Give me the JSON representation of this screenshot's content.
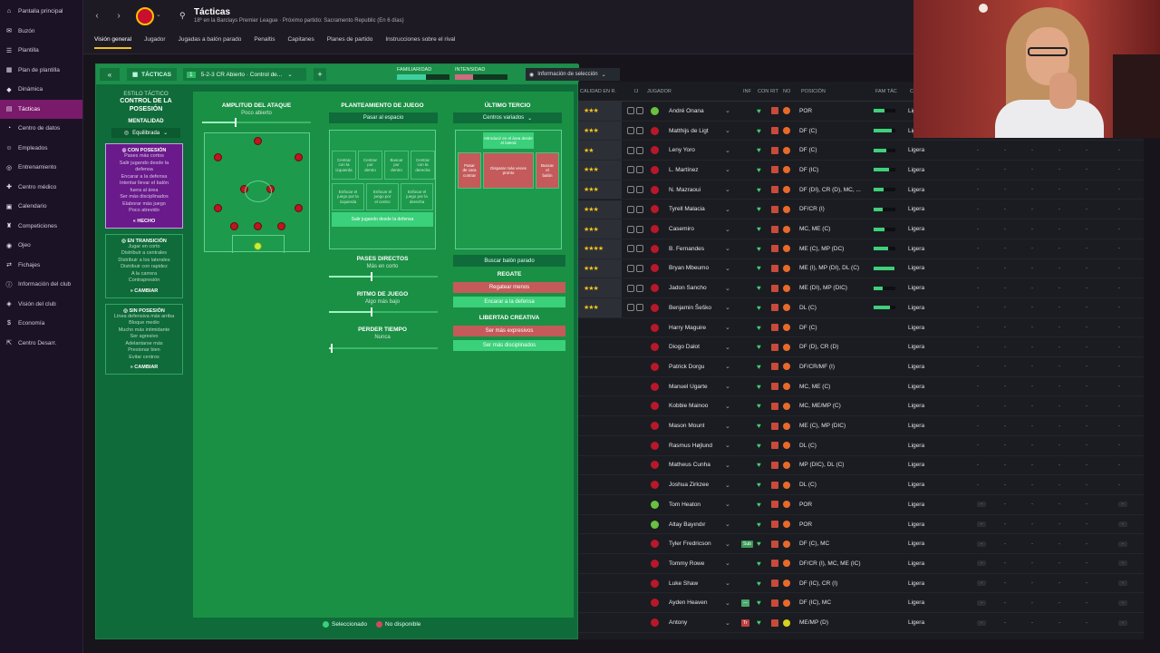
{
  "sidebar": {
    "items": [
      {
        "label": "Pantalla principal",
        "icon": "home-icon",
        "glyph": "⌂"
      },
      {
        "label": "Buzón",
        "icon": "mail-icon",
        "glyph": "✉"
      },
      {
        "label": "Plantilla",
        "icon": "squad-icon",
        "glyph": "☰"
      },
      {
        "label": "Plan de plantilla",
        "icon": "plan-icon",
        "glyph": "▦"
      },
      {
        "label": "Dinámica",
        "icon": "dynamics-icon",
        "glyph": "◆"
      },
      {
        "label": "Tácticas",
        "icon": "tactics-icon",
        "glyph": "▤",
        "active": true
      },
      {
        "label": "Centro de datos",
        "icon": "data-icon",
        "glyph": "◔"
      },
      {
        "label": "Empleados",
        "icon": "staff-icon",
        "glyph": "☺"
      },
      {
        "label": "Entrenamiento",
        "icon": "training-icon",
        "glyph": "◎"
      },
      {
        "label": "Centro médico",
        "icon": "medical-icon",
        "glyph": "✚"
      },
      {
        "label": "Calendario",
        "icon": "calendar-icon",
        "glyph": "▣"
      },
      {
        "label": "Competiciones",
        "icon": "competitions-icon",
        "glyph": "♜"
      },
      {
        "label": "Ojeo",
        "icon": "scouting-icon",
        "glyph": "◉"
      },
      {
        "label": "Fichajes",
        "icon": "transfers-icon",
        "glyph": "⇄"
      },
      {
        "label": "Información del club",
        "icon": "club-info-icon",
        "glyph": "ⓘ"
      },
      {
        "label": "Visión del club",
        "icon": "club-vision-icon",
        "glyph": "◈"
      },
      {
        "label": "Economía",
        "icon": "finances-icon",
        "glyph": "$"
      },
      {
        "label": "Centro Desarr.",
        "icon": "dev-centre-icon",
        "glyph": "⇱"
      }
    ]
  },
  "header": {
    "title": "Tácticas",
    "subtitle": "18º en la Barclays Premier League · Próximo partido: Sacramento Republic (En 6 días)",
    "tabs": [
      {
        "label": "Visión general",
        "active": true
      },
      {
        "label": "Jugador"
      },
      {
        "label": "Jugadas a balón parado"
      },
      {
        "label": "Penaltis"
      },
      {
        "label": "Capitanes"
      },
      {
        "label": "Planes de partido"
      },
      {
        "label": "Instrucciones sobre el rival"
      }
    ]
  },
  "tactic_bar": {
    "label": "TÁCTICAS",
    "slot": "1",
    "selected": "5-2-3 CR Abierto · Control de...",
    "familiarity_label": "FAMILIARIDAD",
    "intensity_label": "INTENSIDAD",
    "familiarity": 0.55,
    "intensity": 0.35,
    "info_dropdown": "Información de selección"
  },
  "style": {
    "small": "ESTILO TÁCTICO",
    "title": "CONTROL DE LA POSESIÓN",
    "mentality_label": "MENTALIDAD",
    "mentality_value": "Equilibrada",
    "in_possession": {
      "head": "CON POSESIÓN",
      "items": [
        "Pases más cortos",
        "Salir jugando desde la",
        "defensa",
        "Encarar a la defensa",
        "Intentar llevar el balón",
        "fuera al área",
        "Ser más disciplinados",
        "Elaborar más juego",
        "Poco atrevido"
      ],
      "button": "HECHO"
    },
    "in_transition": {
      "head": "EN TRANSICIÓN",
      "items": [
        "Jugar en corto",
        "Distribuir a centrales",
        "Distribuir a los laterales",
        "Distribuir con rapidez",
        "A la carrera",
        "Contrapresión"
      ],
      "button": "CAMBIAR"
    },
    "out_possession": {
      "head": "SIN POSESIÓN",
      "items": [
        "Línea defensiva más arriba",
        "Bloque medio",
        "Mucho más intimidante",
        "Ser agresivo",
        "Adelantarse más",
        "Presionar bien",
        "Evitar centros"
      ],
      "button": "CAMBIAR"
    }
  },
  "attack_width": {
    "title": "AMPLITUD DEL ATAQUE",
    "value": "Poco abierto",
    "level": 0.3
  },
  "build_up": {
    "title": "PLANTEAMIENTO DE JUEGO",
    "value": "Pasar al espacio",
    "cells": [
      "Centrar\ncon la\nizquierda",
      "Centrar\npor\ndentro",
      "Buscar\npor\ndentro",
      "Centrar\ncon la\nderecha",
      "Enfocar el\njuego por la\nizquierda",
      "Enfocar el\njuego por\nel centro",
      "Enfocar el\njuego por la\nderecha"
    ],
    "highlight": "Salir jugando desde la defensa"
  },
  "direct_passes": {
    "title": "PASES DIRECTOS",
    "value": "Más en corto",
    "level": 0.38
  },
  "tempo": {
    "title": "RITMO DE JUEGO",
    "value": "Algo más bajo",
    "level": 0.38
  },
  "time_wasting": {
    "title": "PERDER TIEMPO",
    "value": "Nunca",
    "level": 0.02
  },
  "final_third": {
    "title": "ÚLTIMO TERCIO",
    "value": "Centros variados",
    "highlight": "Introducir en el área desde el lateral",
    "left": "Pasar\nde cara\ncontrar",
    "center": "Disparar más veces\npronto",
    "right": "Buscar\nel\nbalón",
    "set_piece_btn": "Buscar balón parado"
  },
  "dribbling": {
    "title": "REGATE",
    "red": "Regatear menos",
    "green": "Encarar a la defensa"
  },
  "creative": {
    "title": "LIBERTAD CREATIVA",
    "red": "Ser más expresivos",
    "green": "Ser más disciplinados"
  },
  "legend": {
    "selected": "Seleccionado",
    "unavailable": "No disponible"
  },
  "squad": {
    "headers": [
      "CALIDAD EN R.",
      "IJ",
      "JUGADOR",
      "INF",
      "CON",
      "RIT",
      "NO",
      "POSICIÓN",
      "FAM TÁC",
      "C"
    ],
    "rows": [
      {
        "stars": "★★★",
        "name": "André Onana",
        "pos": "POR",
        "fam": 0.5,
        "load": "Ligera",
        "gk": true
      },
      {
        "stars": "★★★",
        "name": "Matthijs de Ligt",
        "pos": "DF (C)",
        "fam": 0.85,
        "load": "Ligera"
      },
      {
        "stars": "★★",
        "name": "Leny Yoro",
        "pos": "DF (C)",
        "fam": 0.6,
        "load": "Ligera"
      },
      {
        "stars": "★★★",
        "name": "L. Martínez",
        "pos": "DF (IC)",
        "fam": 0.7,
        "load": "Ligera"
      },
      {
        "stars": "★★★",
        "name": "N. Mazraoui",
        "pos": "DF (DI), CR (D), MC, ...",
        "fam": 0.45,
        "load": "Ligera"
      },
      {
        "stars": "★★★",
        "name": "Tyrell Malacia",
        "pos": "DF/CR (I)",
        "fam": 0.4,
        "load": "Ligera"
      },
      {
        "stars": "★★★",
        "name": "Casemiro",
        "pos": "MC, ME (C)",
        "fam": 0.5,
        "load": "Ligera"
      },
      {
        "stars": "★★★★",
        "name": "B. Fernandes",
        "pos": "ME (C), MP (DC)",
        "fam": 0.65,
        "load": "Ligera"
      },
      {
        "stars": "★★★",
        "name": "Bryan Mbeumo",
        "pos": "ME (I), MP (DI), DL (C)",
        "fam": 0.95,
        "load": "Ligera"
      },
      {
        "stars": "★★★",
        "name": "Jadon Sancho",
        "pos": "ME (DI), MP (DIC)",
        "fam": 0.4,
        "load": "Ligera"
      },
      {
        "stars": "★★★",
        "name": "Benjamin Šeško",
        "pos": "DL (C)",
        "fam": 0.75,
        "load": "Ligera"
      },
      {
        "name": "Harry Maguire",
        "pos": "DF (C)",
        "load": "Ligera"
      },
      {
        "name": "Diogo Dalot",
        "pos": "DF (D), CR (D)",
        "load": "Ligera"
      },
      {
        "name": "Patrick Dorgu",
        "pos": "DF/CR/MF (I)",
        "load": "Ligera"
      },
      {
        "name": "Manuel Ugarte",
        "pos": "MC, ME (C)",
        "load": "Ligera"
      },
      {
        "name": "Kobbie Mainoo",
        "pos": "MC, ME/MP (C)",
        "load": "Ligera"
      },
      {
        "name": "Mason Mount",
        "pos": "ME (C), MP (DIC)",
        "load": "Ligera"
      },
      {
        "name": "Rasmus Højlund",
        "pos": "DL (C)",
        "load": "Ligera"
      },
      {
        "name": "Matheus Cunha",
        "pos": "MP (DIC), DL (C)",
        "load": "Ligera"
      },
      {
        "name": "Joshua Zirkzee",
        "pos": "DL (C)",
        "load": "Ligera"
      },
      {
        "name": "Tom Heaton",
        "pos": "POR",
        "load": "Ligera",
        "gk": true,
        "dashes": true
      },
      {
        "name": "Altay Bayındır",
        "pos": "POR",
        "load": "Ligera",
        "gk": true,
        "dashes": true
      },
      {
        "name": "Tyler Fredricson",
        "pos": "DF (C), MC",
        "load": "Ligera",
        "inf": "Sub",
        "infcolor": "#3a9a5a",
        "dashes": true
      },
      {
        "name": "Tommy Rowe",
        "pos": "DF/CR (I), MC, ME (IC)",
        "load": "Ligera",
        "dashes": true
      },
      {
        "name": "Luke Shaw",
        "pos": "DF (IC), CR (I)",
        "load": "Ligera",
        "dashes": true
      },
      {
        "name": "Ayden Heaven",
        "pos": "DF (IC), MC",
        "load": "Ligera",
        "inf": "—",
        "infcolor": "#4aa86a",
        "dashes": true
      },
      {
        "name": "Antony",
        "pos": "ME/MP (D)",
        "load": "Ligera",
        "inf": "Tr",
        "infcolor": "#c04040",
        "yellow": true,
        "dashes": true
      }
    ]
  }
}
